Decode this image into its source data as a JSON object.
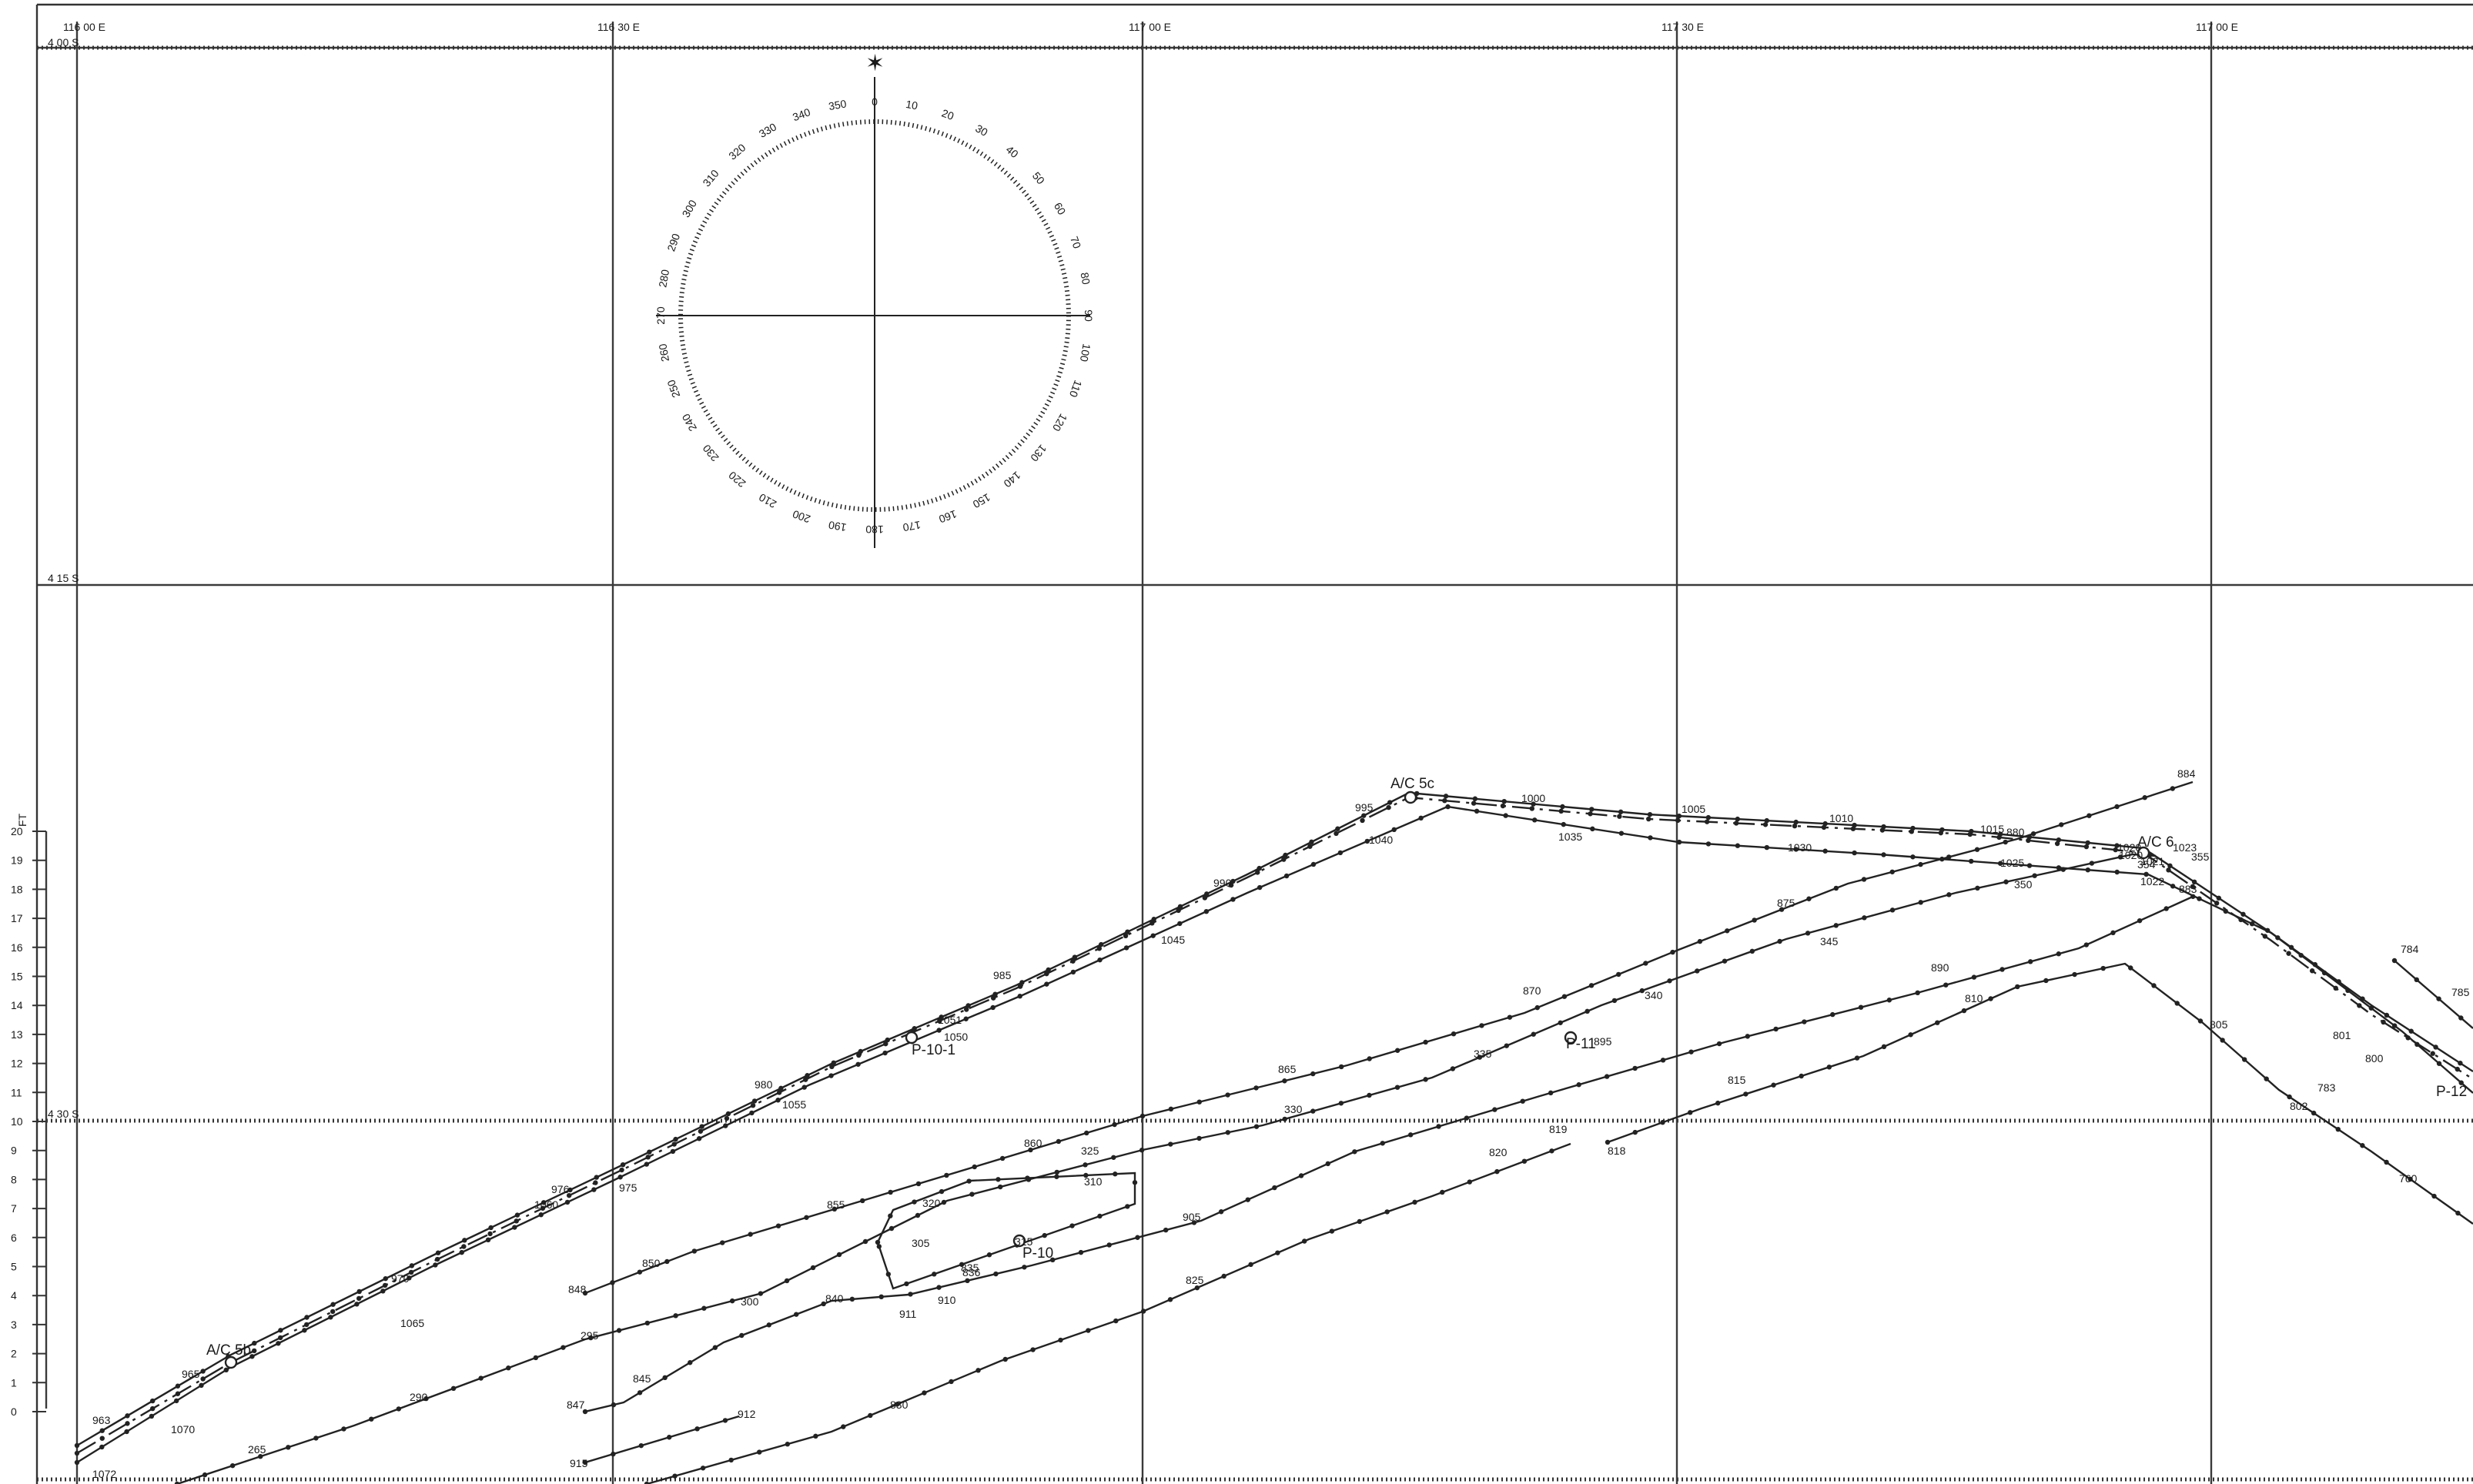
{
  "map": {
    "longitude_labels": [
      "116 00 E",
      "116 30 E",
      "117 00 E",
      "117 30 E",
      "117 00 E"
    ],
    "latitude_labels": [
      "4 00 S",
      "4 15 S",
      "4 30 S"
    ],
    "scale_unit": "FT",
    "scale_values": [
      "20",
      "19",
      "18",
      "17",
      "16",
      "15",
      "14",
      "13",
      "12",
      "11",
      "10",
      "9",
      "8",
      "7",
      "6",
      "5",
      "4",
      "3",
      "2",
      "1",
      "0"
    ],
    "compass_labels": [
      "0",
      "10",
      "20",
      "30",
      "40",
      "50",
      "60",
      "70",
      "80",
      "90",
      "100",
      "110",
      "120",
      "130",
      "140",
      "150",
      "160",
      "170",
      "180",
      "190",
      "200",
      "210",
      "220",
      "230",
      "240",
      "250",
      "260",
      "270",
      "280",
      "290",
      "300",
      "310",
      "320",
      "330",
      "340",
      "350"
    ],
    "point_labels": {
      "ac5b": "A/C 5b",
      "ac5c": "A/C 5c",
      "ac6": "A/C 6",
      "p10": "P-10",
      "p10_1": "P-10-1",
      "p11": "P-11",
      "p12": "P-12"
    },
    "track_labels": [
      {
        "id": "t963",
        "text": "963"
      },
      {
        "id": "t965",
        "text": "965"
      },
      {
        "id": "t970",
        "text": "970"
      },
      {
        "id": "t975",
        "text": "975"
      },
      {
        "id": "t976",
        "text": "976"
      },
      {
        "id": "t980",
        "text": "980"
      },
      {
        "id": "t985",
        "text": "985"
      },
      {
        "id": "t990",
        "text": "990"
      },
      {
        "id": "t995",
        "text": "995"
      },
      {
        "id": "t1000",
        "text": "1000"
      },
      {
        "id": "t1005",
        "text": "1005"
      },
      {
        "id": "t1010",
        "text": "1010"
      },
      {
        "id": "t1015",
        "text": "1015"
      },
      {
        "id": "t1020",
        "text": "1020"
      },
      {
        "id": "t1025",
        "text": "1025"
      },
      {
        "id": "t1030",
        "text": "1030"
      },
      {
        "id": "t1035",
        "text": "1035"
      },
      {
        "id": "t1040",
        "text": "1040"
      },
      {
        "id": "t1045",
        "text": "1045"
      },
      {
        "id": "t1050",
        "text": "1050"
      },
      {
        "id": "t1051",
        "text": "1051"
      },
      {
        "id": "t1055",
        "text": "1055"
      },
      {
        "id": "t1060",
        "text": "1060"
      },
      {
        "id": "t1065",
        "text": "1065"
      },
      {
        "id": "t1070",
        "text": "1070"
      },
      {
        "id": "t1072",
        "text": "1072"
      },
      {
        "id": "t1022",
        "text": "1022"
      },
      {
        "id": "t1023",
        "text": "1023"
      },
      {
        "id": "t1021",
        "text": "1021"
      },
      {
        "id": "t1020b",
        "text": "1020"
      },
      {
        "id": "t265",
        "text": "265"
      },
      {
        "id": "t290",
        "text": "290"
      },
      {
        "id": "t295",
        "text": "295"
      },
      {
        "id": "t300",
        "text": "300"
      },
      {
        "id": "t305",
        "text": "305"
      },
      {
        "id": "t310",
        "text": "310"
      },
      {
        "id": "t315",
        "text": "315"
      },
      {
        "id": "t320",
        "text": "320"
      },
      {
        "id": "t325",
        "text": "325"
      },
      {
        "id": "t330",
        "text": "330"
      },
      {
        "id": "t335",
        "text": "335"
      },
      {
        "id": "t340",
        "text": "340"
      },
      {
        "id": "t345",
        "text": "345"
      },
      {
        "id": "t350",
        "text": "350"
      },
      {
        "id": "t354",
        "text": "354"
      },
      {
        "id": "t355",
        "text": "355"
      },
      {
        "id": "t760",
        "text": "760"
      },
      {
        "id": "t783",
        "text": "783"
      },
      {
        "id": "t784",
        "text": "784"
      },
      {
        "id": "t785",
        "text": "785"
      },
      {
        "id": "t800",
        "text": "800"
      },
      {
        "id": "t801",
        "text": "801"
      },
      {
        "id": "t802",
        "text": "802"
      },
      {
        "id": "t805",
        "text": "805"
      },
      {
        "id": "t810",
        "text": "810"
      },
      {
        "id": "t815",
        "text": "815"
      },
      {
        "id": "t818",
        "text": "818"
      },
      {
        "id": "t819",
        "text": "819"
      },
      {
        "id": "t820",
        "text": "820"
      },
      {
        "id": "t825",
        "text": "825"
      },
      {
        "id": "t830",
        "text": "830"
      },
      {
        "id": "t835",
        "text": "835"
      },
      {
        "id": "t836",
        "text": "836"
      },
      {
        "id": "t840",
        "text": "840"
      },
      {
        "id": "t845",
        "text": "845"
      },
      {
        "id": "t847",
        "text": "847"
      },
      {
        "id": "t848",
        "text": "848"
      },
      {
        "id": "t850",
        "text": "850"
      },
      {
        "id": "t855",
        "text": "855"
      },
      {
        "id": "t860",
        "text": "860"
      },
      {
        "id": "t865",
        "text": "865"
      },
      {
        "id": "t870",
        "text": "870"
      },
      {
        "id": "t875",
        "text": "875"
      },
      {
        "id": "t880",
        "text": "880"
      },
      {
        "id": "t883",
        "text": "883"
      },
      {
        "id": "t884",
        "text": "884"
      },
      {
        "id": "t890",
        "text": "890"
      },
      {
        "id": "t895",
        "text": "895"
      },
      {
        "id": "t905",
        "text": "905"
      },
      {
        "id": "t910",
        "text": "910"
      },
      {
        "id": "t911",
        "text": "911"
      },
      {
        "id": "t912",
        "text": "912"
      },
      {
        "id": "t915",
        "text": "915"
      }
    ]
  }
}
